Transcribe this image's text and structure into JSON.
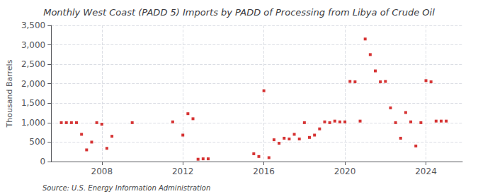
{
  "chart_data": {
    "type": "scatter",
    "title": "Monthly West Coast (PADD 5) Imports by PADD of Processing from Libya of Crude Oil",
    "ylabel": "Thousand Barrels",
    "annotations": [
      "Source: U.S. Energy Information Administration"
    ],
    "color": "#cc0000",
    "marker": "square",
    "grid": true,
    "xlim": [
      2005.5,
      2025.8
    ],
    "xticks": [
      2008,
      2012,
      2016,
      2020,
      2024
    ],
    "ylim": [
      0,
      3500
    ],
    "yticks": [
      0,
      500,
      {
        "value": 1000,
        "label": "1,000"
      },
      {
        "value": 1500,
        "label": "1,500"
      },
      {
        "value": 2000,
        "label": "2,000"
      },
      {
        "value": 2500,
        "label": "2,500"
      },
      {
        "value": 3000,
        "label": "3,000"
      },
      {
        "value": 3500,
        "label": "3,500"
      }
    ],
    "x": [
      2006.0,
      2006.25,
      2006.5,
      2006.75,
      2007.0,
      2007.25,
      2007.5,
      2007.75,
      2008.0,
      2008.25,
      2008.5,
      2009.5,
      2011.5,
      2012.0,
      2012.25,
      2012.5,
      2012.75,
      2013.0,
      2013.25,
      2015.5,
      2015.75,
      2016.0,
      2016.25,
      2016.5,
      2016.75,
      2017.0,
      2017.25,
      2017.5,
      2017.75,
      2018.0,
      2018.25,
      2018.5,
      2018.75,
      2019.0,
      2019.25,
      2019.5,
      2019.75,
      2020.0,
      2020.25,
      2020.5,
      2020.75,
      2021.0,
      2021.25,
      2021.5,
      2021.75,
      2022.0,
      2022.25,
      2022.5,
      2022.75,
      2023.0,
      2023.25,
      2023.5,
      2023.75,
      2024.0,
      2024.25,
      2024.5,
      2024.75,
      2025.0
    ],
    "values": [
      1000,
      1000,
      1000,
      1000,
      700,
      300,
      500,
      1000,
      960,
      340,
      650,
      1000,
      1020,
      680,
      1230,
      1100,
      60,
      70,
      70,
      200,
      130,
      1820,
      100,
      560,
      470,
      600,
      580,
      700,
      580,
      1000,
      620,
      680,
      840,
      1020,
      1000,
      1040,
      1020,
      1020,
      2060,
      2050,
      1040,
      3150,
      2750,
      2330,
      2050,
      2060,
      1380,
      1000,
      600,
      1260,
      1020,
      400,
      1000,
      2080,
      2050,
      1040,
      1040,
      1040
    ]
  }
}
